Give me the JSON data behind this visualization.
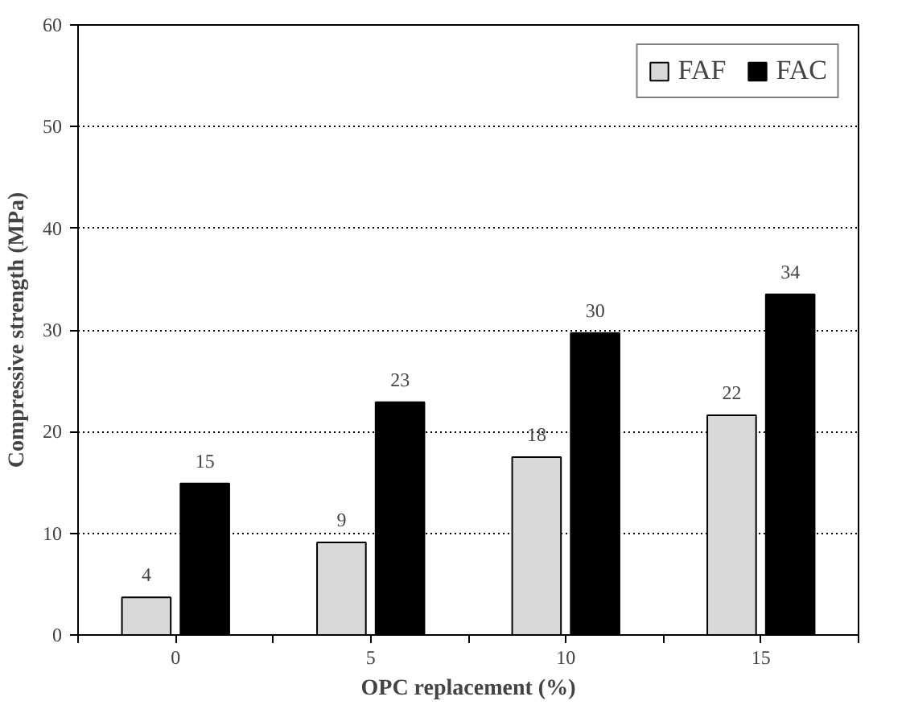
{
  "chart_data": {
    "type": "bar",
    "xlabel": "OPC replacement (%)",
    "ylabel": "Compressive strength (MPa)",
    "categories": [
      "0",
      "5",
      "10",
      "15"
    ],
    "series": [
      {
        "name": "FAF",
        "color": "#d9d9d9",
        "values": [
          3.7,
          9.1,
          17.5,
          21.6
        ],
        "value_labels": [
          "4",
          "9",
          "18",
          "22"
        ]
      },
      {
        "name": "FAC",
        "color": "#000000",
        "values": [
          14.9,
          22.9,
          29.7,
          33.5
        ],
        "value_labels": [
          "15",
          "23",
          "30",
          "34"
        ]
      }
    ],
    "ylim": [
      0,
      60
    ],
    "yticks": [
      0,
      10,
      20,
      30,
      40,
      50,
      60
    ],
    "grid": "y",
    "legend": "top right"
  }
}
